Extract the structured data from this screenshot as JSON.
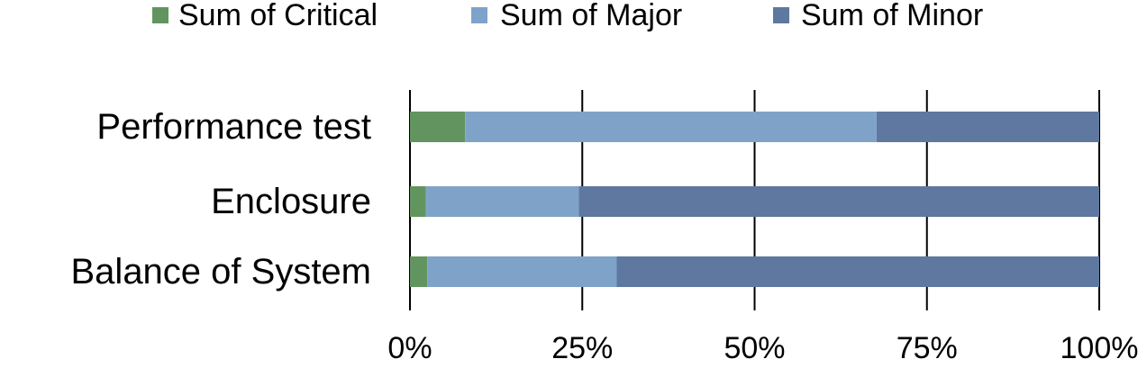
{
  "chart_data": {
    "type": "bar",
    "orientation": "horizontal",
    "stacked": "percent",
    "title": "",
    "xlabel": "",
    "ylabel": "",
    "categories": [
      "Performance test",
      "Enclosure",
      "Balance of System"
    ],
    "series": [
      {
        "name": "Sum of Critical",
        "color": "#629460",
        "values": [
          8,
          2.3,
          2.5
        ]
      },
      {
        "name": "Sum of Major",
        "color": "#7fa3c8",
        "values": [
          59.7,
          22.2,
          27.5
        ]
      },
      {
        "name": "Sum of Minor",
        "color": "#5e789f",
        "values": [
          32.3,
          75.5,
          70
        ]
      }
    ],
    "xlim": [
      0,
      100
    ],
    "x_ticks": [
      0,
      25,
      50,
      75,
      100
    ],
    "x_tick_labels": [
      "0%",
      "25%",
      "50%",
      "75%",
      "100%"
    ],
    "grid": true,
    "legend": "top"
  }
}
